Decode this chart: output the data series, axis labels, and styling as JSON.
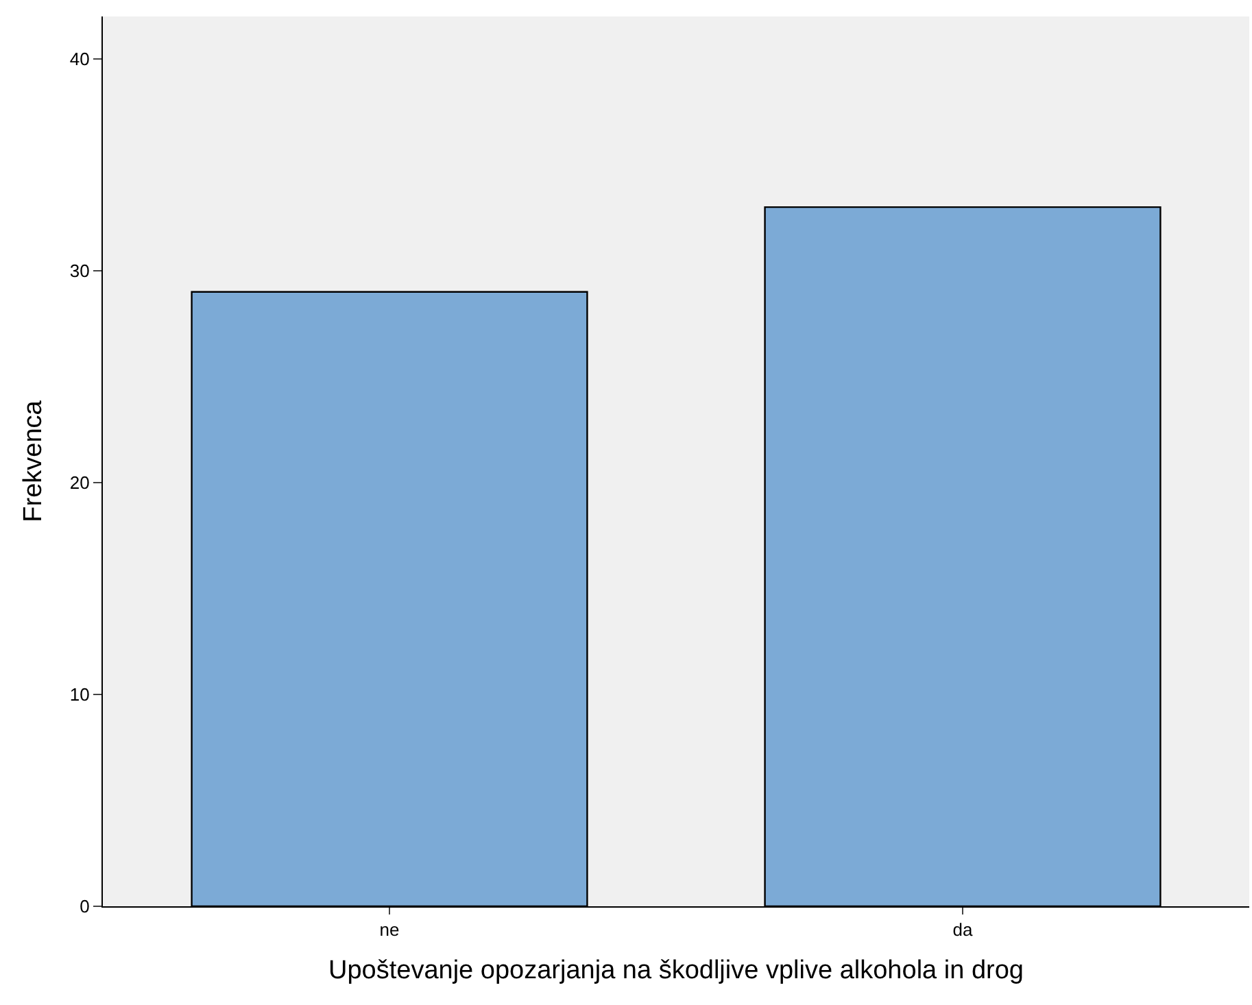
{
  "chart_data": {
    "type": "bar",
    "xlabel": "Upoštevanje opozarjanja na škodljive vplive alkohola in drog",
    "ylabel": "Frekvenca",
    "categories": [
      "ne",
      "da"
    ],
    "values": [
      29,
      33
    ],
    "color": "#7caad6",
    "ylim": [
      0,
      42
    ],
    "yticks": [
      0,
      10,
      20,
      30,
      40
    ],
    "grid": false,
    "legend": false
  }
}
